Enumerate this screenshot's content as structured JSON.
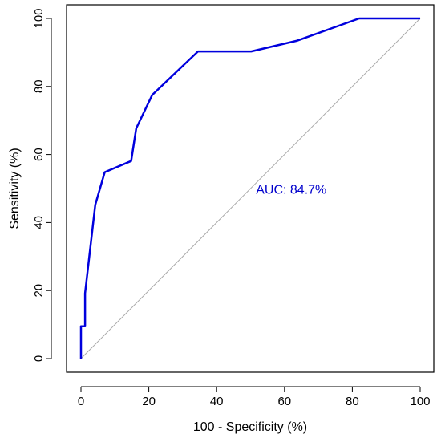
{
  "chart_data": {
    "type": "line",
    "title": "",
    "xlabel": "100 - Specificity (%)",
    "ylabel": "Sensitivity (%)",
    "xlim": [
      0,
      100
    ],
    "ylim": [
      0,
      100
    ],
    "x_ticks": [
      0,
      20,
      40,
      60,
      80,
      100
    ],
    "y_ticks": [
      0,
      20,
      40,
      60,
      80,
      100
    ],
    "x_tick_labels": [
      "0",
      "20",
      "40",
      "60",
      "80",
      "100"
    ],
    "y_tick_labels": [
      "0",
      "20",
      "40",
      "60",
      "80",
      "100"
    ],
    "grid": false,
    "series": [
      {
        "color": "#0000dd",
        "x": [
          0,
          0,
          1.2,
          1.2,
          4.2,
          7,
          14.8,
          16.3,
          21,
          34.5,
          50.2,
          63.8,
          82,
          100
        ],
        "y": [
          0,
          9.5,
          9.5,
          19.2,
          45.2,
          54.8,
          58.1,
          67.7,
          77.5,
          90.3,
          90.3,
          93.5,
          100,
          100
        ]
      }
    ],
    "reference_line": {
      "x": [
        0,
        100
      ],
      "y": [
        0,
        100
      ],
      "color": "#aaaaaa"
    },
    "annotation": {
      "text": "AUC: 84.7%",
      "x": 62,
      "y": 48.5,
      "color": "#0000cc"
    }
  }
}
